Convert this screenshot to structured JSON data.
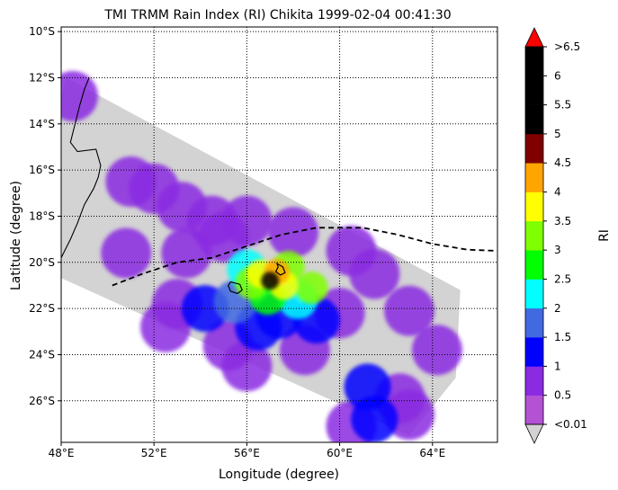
{
  "title": "TMI TRMM Rain Index (RI) Chikita 1999-02-04 00:41:30",
  "xlabel": "Longitude (degree)",
  "ylabel": "Latitude (degree)",
  "colorbar": {
    "label": "RI",
    "tick_labels": [
      "<0.01",
      "0.5",
      "1",
      "1.5",
      "2",
      "2.5",
      "3",
      "3.5",
      "4",
      "4.5",
      "5",
      "5.5",
      "6",
      ">6.5"
    ],
    "colors": [
      "#b452d4",
      "#8a2be2",
      "#0000ff",
      "#4169e1",
      "#00ffff",
      "#00ff00",
      "#7fff00",
      "#ffff00",
      "#ffa500",
      "#800000",
      "#000000",
      "#000000",
      "#000000"
    ],
    "under_color": "#d3d3d3",
    "over_color": "#ff0000"
  },
  "swath_color": "#d3d3d3",
  "chart_data": {
    "type": "heatmap",
    "title": "TMI TRMM Rain Index (RI) Chikita 1999-02-04 00:41:30",
    "xlabel": "Longitude (degree)",
    "ylabel": "Latitude (degree)",
    "xlim": [
      48,
      66.8
    ],
    "ylim": [
      -27.8,
      -9.8
    ],
    "x_ticks": [
      48,
      52,
      56,
      60,
      64
    ],
    "x_tick_labels": [
      "48°E",
      "52°E",
      "56°E",
      "60°E",
      "64°E"
    ],
    "y_ticks": [
      -10,
      -12,
      -14,
      -16,
      -18,
      -20,
      -22,
      -24,
      -26
    ],
    "y_tick_labels": [
      "10°S",
      "12°S",
      "14°S",
      "16°S",
      "18°S",
      "20°S",
      "22°S",
      "24°S",
      "26°S"
    ],
    "grid": "dotted",
    "swath_polygon": [
      [
        48,
        -13.0
      ],
      [
        48.2,
        -12.0
      ],
      [
        65.2,
        -21.2
      ],
      [
        65.0,
        -25.0
      ],
      [
        63.0,
        -27.5
      ],
      [
        46.5,
        -20.0
      ]
    ],
    "track": {
      "style": "dashed",
      "points": [
        [
          50.2,
          -21.0
        ],
        [
          51.5,
          -20.5
        ],
        [
          53,
          -20.0
        ],
        [
          54.5,
          -19.8
        ],
        [
          56,
          -19.3
        ],
        [
          57.5,
          -18.8
        ],
        [
          59,
          -18.5
        ],
        [
          61,
          -18.5
        ],
        [
          62.5,
          -18.8
        ],
        [
          64,
          -19.2
        ],
        [
          65.5,
          -19.45
        ],
        [
          66.8,
          -19.5
        ]
      ]
    },
    "rain_features": [
      {
        "lon": 57.0,
        "lat": -20.8,
        "ri": 5
      },
      {
        "lon": 57.3,
        "lat": -20.4,
        "ri": 4
      },
      {
        "lon": 56.6,
        "lat": -20.5,
        "ri": 3.5
      },
      {
        "lon": 57.6,
        "lat": -21.0,
        "ri": 3.5
      },
      {
        "lon": 56.2,
        "lat": -20.9,
        "ri": 3
      },
      {
        "lon": 57.8,
        "lat": -20.2,
        "ri": 3
      },
      {
        "lon": 56.9,
        "lat": -21.5,
        "ri": 2.5
      },
      {
        "lon": 58.8,
        "lat": -21.1,
        "ri": 3
      },
      {
        "lon": 56.0,
        "lat": -20.3,
        "ri": 2
      },
      {
        "lon": 58.2,
        "lat": -21.6,
        "ri": 2
      },
      {
        "lon": 55.5,
        "lat": -21.7,
        "ri": 1.5
      },
      {
        "lon": 57.4,
        "lat": -22.3,
        "ri": 1
      },
      {
        "lon": 59.0,
        "lat": -22.5,
        "ri": 1
      },
      {
        "lon": 56.5,
        "lat": -22.8,
        "ri": 1
      },
      {
        "lon": 54.2,
        "lat": -22.0,
        "ri": 1
      },
      {
        "lon": 53.0,
        "lat": -21.8,
        "ri": 0.5
      },
      {
        "lon": 52.5,
        "lat": -22.8,
        "ri": 0.5
      },
      {
        "lon": 53.4,
        "lat": -19.6,
        "ri": 0.5
      },
      {
        "lon": 54.5,
        "lat": -18.2,
        "ri": 0.5
      },
      {
        "lon": 56.0,
        "lat": -18.2,
        "ri": 0.5
      },
      {
        "lon": 58.0,
        "lat": -18.7,
        "ri": 0.5
      },
      {
        "lon": 60.5,
        "lat": -19.5,
        "ri": 0.5
      },
      {
        "lon": 61.5,
        "lat": -20.5,
        "ri": 0.5
      },
      {
        "lon": 60.0,
        "lat": -22.2,
        "ri": 0.5
      },
      {
        "lon": 58.5,
        "lat": -23.8,
        "ri": 0.5
      },
      {
        "lon": 56.0,
        "lat": -24.5,
        "ri": 0.5
      },
      {
        "lon": 55.2,
        "lat": -23.6,
        "ri": 0.5
      },
      {
        "lon": 61.5,
        "lat": -26.8,
        "ri": 1
      },
      {
        "lon": 60.5,
        "lat": -27.1,
        "ri": 0.5
      },
      {
        "lon": 63.0,
        "lat": -26.6,
        "ri": 0.5
      },
      {
        "lon": 61.2,
        "lat": -25.4,
        "ri": 1
      },
      {
        "lon": 62.6,
        "lat": -25.9,
        "ri": 0.5
      },
      {
        "lon": 51.0,
        "lat": -16.5,
        "ri": 0.5
      },
      {
        "lon": 52.0,
        "lat": -16.8,
        "ri": 0.5
      },
      {
        "lon": 53.2,
        "lat": -17.6,
        "ri": 0.5
      },
      {
        "lon": 50.8,
        "lat": -19.6,
        "ri": 0.5
      },
      {
        "lon": 48.5,
        "lat": -12.8,
        "ri": 0.5
      },
      {
        "lon": 64.2,
        "lat": -23.8,
        "ri": 0.5
      },
      {
        "lon": 63.0,
        "lat": -22.1,
        "ri": 0.5
      },
      {
        "lon": 55.0,
        "lat": -18.9,
        "ri": 0.5
      }
    ],
    "coastline": [
      [
        49.2,
        -12.0
      ],
      [
        49.0,
        -12.5
      ],
      [
        48.8,
        -13.2
      ],
      [
        48.6,
        -14.0
      ],
      [
        48.4,
        -14.8
      ],
      [
        48.7,
        -15.2
      ],
      [
        49.5,
        -15.1
      ],
      [
        49.7,
        -15.8
      ],
      [
        49.6,
        -16.3
      ],
      [
        49.4,
        -16.8
      ],
      [
        49.0,
        -17.5
      ],
      [
        48.7,
        -18.3
      ],
      [
        48.4,
        -19.0
      ],
      [
        48.0,
        -19.8
      ],
      [
        47.7,
        -20.8
      ],
      [
        47.4,
        -22.0
      ],
      [
        47.2,
        -23.0
      ]
    ],
    "islands": [
      [
        [
          57.3,
          -20.05
        ],
        [
          57.55,
          -20.2
        ],
        [
          57.65,
          -20.45
        ],
        [
          57.45,
          -20.55
        ],
        [
          57.25,
          -20.4
        ],
        [
          57.35,
          -20.2
        ],
        [
          57.3,
          -20.05
        ]
      ],
      [
        [
          55.3,
          -20.85
        ],
        [
          55.7,
          -20.95
        ],
        [
          55.8,
          -21.2
        ],
        [
          55.6,
          -21.35
        ],
        [
          55.3,
          -21.25
        ],
        [
          55.2,
          -21.0
        ],
        [
          55.3,
          -20.85
        ]
      ]
    ]
  }
}
